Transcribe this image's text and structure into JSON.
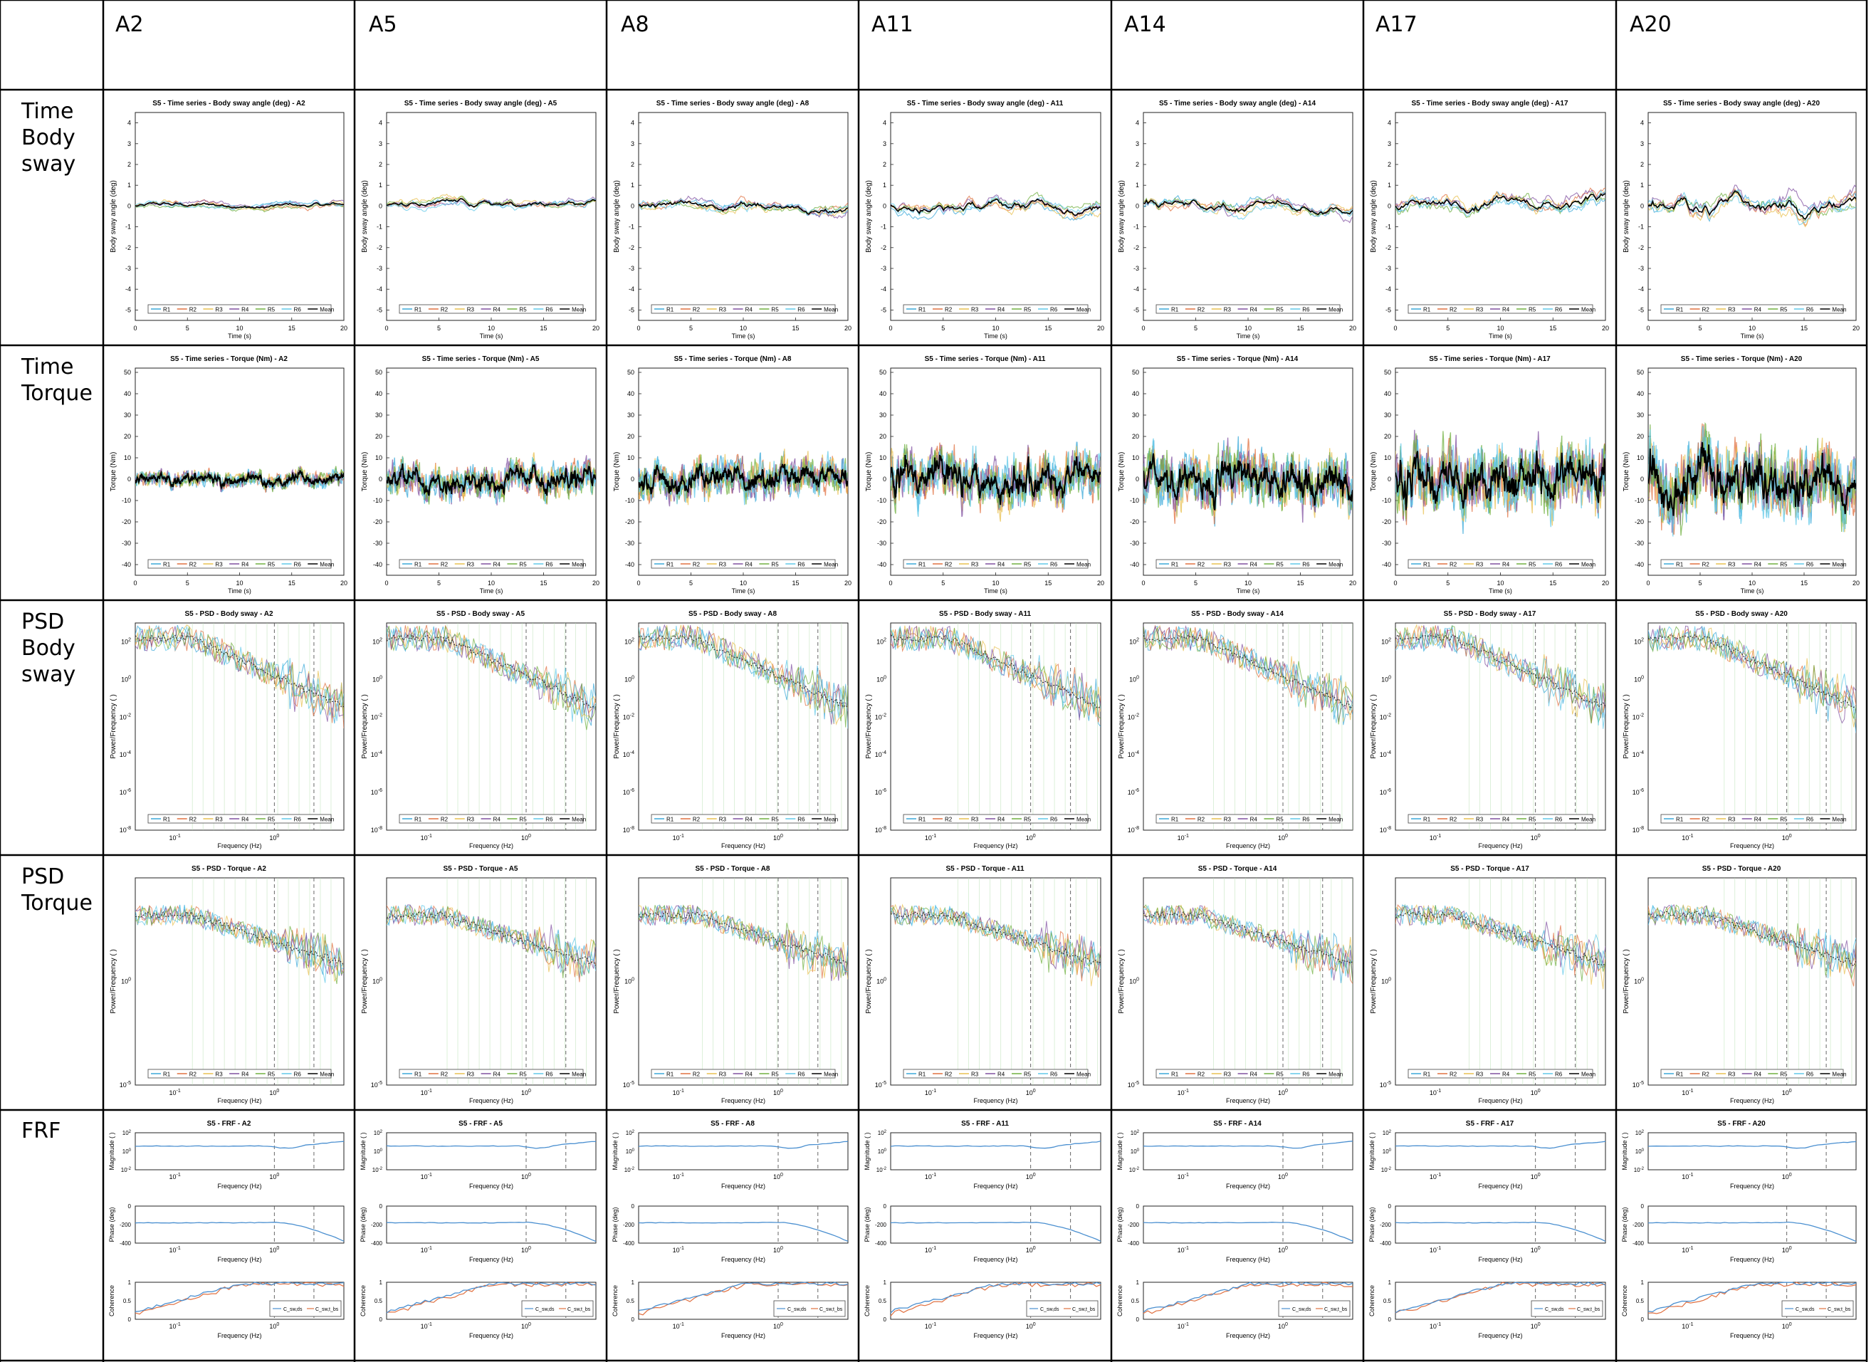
{
  "columns": [
    "A2",
    "A5",
    "A8",
    "A11",
    "A14",
    "A17",
    "A20"
  ],
  "rows": [
    {
      "label": "Time\nBody\nsway"
    },
    {
      "label": "Time\nTorque"
    },
    {
      "label": "PSD\nBody\nsway"
    },
    {
      "label": "PSD\nTorque"
    },
    {
      "label": "FRF"
    }
  ],
  "subject": "S5",
  "titles": {
    "time_sway": "S5 - Time series - Body sway angle (deg) - ",
    "time_torque": "S5 - Time series - Torque (Nm) - ",
    "psd_sway": "S5 - PSD - Body sway - ",
    "psd_torque": "S5 - PSD - Torque - ",
    "frf": "S5 - FRF - "
  },
  "labels": {
    "time_s": "Time (s)",
    "body_sway_angle": "Body sway angle (deg)",
    "torque_nm": "Torque (Nm)",
    "frequency_hz": "Frequency (Hz)",
    "power_frequency": "Power/Frequency ( )",
    "magnitude": "Magnitude ( )",
    "phase": "Phase (deg)",
    "coherence": "Coherence"
  },
  "legend": [
    "R1",
    "R2",
    "R3",
    "R4",
    "R5",
    "R6",
    "Mean"
  ],
  "coherence_legend": [
    "C_sw,ds",
    "C_sw,t_bs"
  ],
  "colors": {
    "R1": "#3aa8d8",
    "R2": "#e07040",
    "R3": "#e8c050",
    "R4": "#8050a0",
    "R5": "#70b040",
    "R6": "#60c8e8",
    "Mean": "#000000",
    "frf": "#4a8fd0",
    "grid": "#000000",
    "cell_border": "#000000"
  },
  "chart_data": [
    {
      "type": "line",
      "title": "S5 - Time series - Body sway angle (deg) - A2..A20",
      "xlabel": "Time (s)",
      "ylabel": "Body sway angle (deg)",
      "xlim": [
        0,
        20
      ],
      "ylim": [
        -5.5,
        4.5
      ],
      "xticks": [
        0,
        5,
        10,
        15,
        20
      ],
      "yticks": [
        -5,
        -4,
        -3,
        -2,
        -1,
        0,
        1,
        2,
        3,
        4
      ],
      "series": [
        "R1",
        "R2",
        "R3",
        "R4",
        "R5",
        "R6",
        "Mean"
      ],
      "panels": [
        "A2",
        "A5",
        "A8",
        "A11",
        "A14",
        "A17",
        "A20"
      ],
      "amplitude_deg": {
        "A2": 0.8,
        "A5": 1.0,
        "A8": 1.4,
        "A11": 1.6,
        "A14": 1.7,
        "A17": 1.9,
        "A20": 2.4
      }
    },
    {
      "type": "line",
      "title": "S5 - Time series - Torque (Nm) - A2..A20",
      "xlabel": "Time (s)",
      "ylabel": "Torque (Nm)",
      "xlim": [
        0,
        20
      ],
      "ylim": [
        -45,
        52
      ],
      "xticks": [
        0,
        5,
        10,
        15,
        20
      ],
      "yticks": [
        -40,
        -30,
        -20,
        -10,
        0,
        10,
        20,
        30,
        40,
        50
      ],
      "series": [
        "R1",
        "R2",
        "R3",
        "R4",
        "R5",
        "R6",
        "Mean"
      ],
      "panels": [
        "A2",
        "A5",
        "A8",
        "A11",
        "A14",
        "A17",
        "A20"
      ],
      "amplitude_nm": {
        "A2": 6,
        "A5": 12,
        "A8": 14,
        "A11": 18,
        "A14": 20,
        "A17": 24,
        "A20": 26
      }
    },
    {
      "type": "line",
      "title": "S5 - PSD - Body sway - A2..A20",
      "xlabel": "Frequency (Hz)",
      "ylabel": "Power/Frequency ( )",
      "xscale": "log",
      "yscale": "log",
      "xlim": [
        0.04,
        5
      ],
      "ylim": [
        1e-08,
        1000.0
      ],
      "yticks": [
        "10^2",
        "10^0",
        "10^-2",
        "10^-4",
        "10^-6",
        "10^-8"
      ],
      "xticks": [
        "10^-1",
        "10^0"
      ],
      "series": [
        "R1",
        "R2",
        "R3",
        "R4",
        "R5",
        "R6",
        "Mean"
      ],
      "panels": [
        "A2",
        "A5",
        "A8",
        "A11",
        "A14",
        "A17",
        "A20"
      ]
    },
    {
      "type": "line",
      "title": "S5 - PSD - Torque - A2..A20",
      "xlabel": "Frequency (Hz)",
      "ylabel": "Power/Frequency ( )",
      "xscale": "log",
      "yscale": "log",
      "xlim": [
        0.04,
        5
      ],
      "ylim": [
        1e-05,
        100000.0
      ],
      "yticks": [
        "10^0",
        "10^-5"
      ],
      "xticks": [
        "10^-1",
        "10^0"
      ],
      "series": [
        "R1",
        "R2",
        "R3",
        "R4",
        "R5",
        "R6",
        "Mean"
      ],
      "panels": [
        "A2",
        "A5",
        "A8",
        "A11",
        "A14",
        "A17",
        "A20"
      ]
    },
    {
      "type": "line",
      "title": "S5 - FRF - A2..A20",
      "subplots": [
        {
          "ylabel": "Magnitude ( )",
          "yscale": "log",
          "yticks": [
            "10^2",
            "10^0",
            "10^-2"
          ]
        },
        {
          "ylabel": "Phase (deg)",
          "ylim": [
            -400,
            0
          ],
          "yticks": [
            0,
            -200,
            -400
          ]
        },
        {
          "ylabel": "Coherence",
          "ylim": [
            0,
            1
          ],
          "yticks": [
            0,
            0.5,
            1
          ]
        }
      ],
      "xlabel": "Frequency (Hz)",
      "xscale": "log",
      "xticks": [
        "10^-1",
        "10^0"
      ],
      "panels": [
        "A2",
        "A5",
        "A8",
        "A11",
        "A14",
        "A17",
        "A20"
      ]
    }
  ]
}
